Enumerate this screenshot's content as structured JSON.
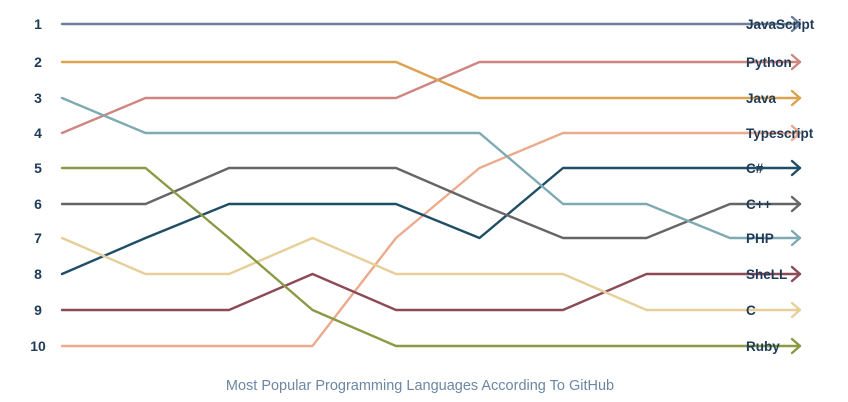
{
  "chart_data": {
    "type": "line",
    "title": "Most Popular Programming Languages According To GitHub",
    "y_ticks": [
      "1",
      "2",
      "3",
      "4",
      "5",
      "6",
      "7",
      "8",
      "9",
      "10"
    ],
    "x": [
      0,
      1,
      2,
      3,
      4,
      5,
      6,
      7,
      8
    ],
    "ylim": [
      1,
      10
    ],
    "y_inverted": true,
    "grid": false,
    "legend": "right-end labels",
    "series": [
      {
        "name": "JavaScript",
        "color": "#6f7f99",
        "values": [
          1,
          1,
          1,
          1,
          1,
          1,
          1,
          1,
          1
        ]
      },
      {
        "name": "Python",
        "color": "#cf8680",
        "values": [
          4,
          3,
          3,
          3,
          3,
          2,
          2,
          2,
          2
        ]
      },
      {
        "name": "Java",
        "color": "#dca24f",
        "values": [
          2,
          2,
          2,
          2,
          2,
          3,
          3,
          3,
          3
        ]
      },
      {
        "name": "Typescript",
        "color": "#ecab8c",
        "values": [
          10,
          10,
          10,
          10,
          7,
          5,
          4,
          4,
          4
        ]
      },
      {
        "name": "C#",
        "color": "#1f4e66",
        "values": [
          8,
          7,
          6,
          6,
          6,
          7,
          5,
          5,
          5
        ]
      },
      {
        "name": "C++",
        "color": "#666666",
        "values": [
          6,
          6,
          5,
          5,
          5,
          6,
          7,
          7,
          6
        ]
      },
      {
        "name": "PHP",
        "color": "#7eaab3",
        "values": [
          3,
          4,
          4,
          4,
          4,
          4,
          6,
          6,
          7
        ]
      },
      {
        "name": "SheLL",
        "color": "#8b4a56",
        "values": [
          9,
          9,
          9,
          8,
          9,
          9,
          9,
          8,
          8
        ]
      },
      {
        "name": "C",
        "color": "#e6cf98",
        "values": [
          7,
          8,
          8,
          7,
          8,
          8,
          8,
          9,
          9
        ]
      },
      {
        "name": "Ruby",
        "color": "#8a9a45",
        "values": [
          5,
          5,
          7,
          9,
          10,
          10,
          10,
          10,
          10
        ]
      }
    ]
  }
}
